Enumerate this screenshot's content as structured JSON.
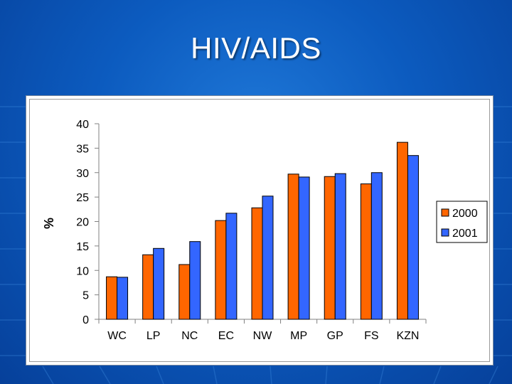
{
  "slide": {
    "title": "HIV/AIDS"
  },
  "chart_data": {
    "type": "bar",
    "title": "",
    "xlabel": "",
    "ylabel": "%",
    "ylim": [
      0,
      40
    ],
    "yticks": [
      0,
      5,
      10,
      15,
      20,
      25,
      30,
      35,
      40
    ],
    "categories": [
      "WC",
      "LP",
      "NC",
      "EC",
      "NW",
      "MP",
      "GP",
      "FS",
      "KZN"
    ],
    "series": [
      {
        "name": "2000",
        "color": "#ff6600",
        "values": [
          8.7,
          13.2,
          11.2,
          20.2,
          22.8,
          29.7,
          29.2,
          27.7,
          36.2
        ]
      },
      {
        "name": "2001",
        "color": "#3366ff",
        "values": [
          8.6,
          14.5,
          15.9,
          21.7,
          25.2,
          29.1,
          29.8,
          30.0,
          33.5
        ]
      }
    ],
    "legend_position": "right",
    "grid": false
  }
}
